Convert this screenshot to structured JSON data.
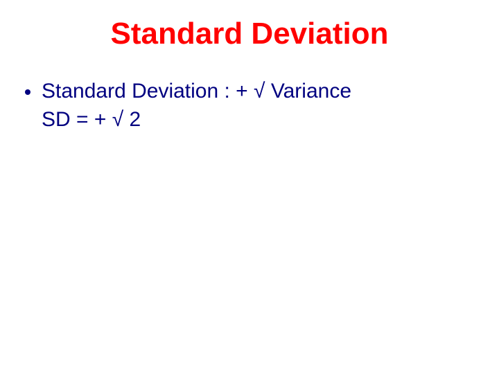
{
  "colors": {
    "title": "#ff0000",
    "body": "#000080",
    "background": "#ffffff"
  },
  "typography": {
    "title_fontsize": 44,
    "body_fontsize": 30,
    "font_family": "Comic Sans MS"
  },
  "title": "Standard Deviation",
  "items": [
    {
      "line1": "Standard Deviation : + √ Variance",
      "line2": "SD = + √ 2"
    }
  ]
}
